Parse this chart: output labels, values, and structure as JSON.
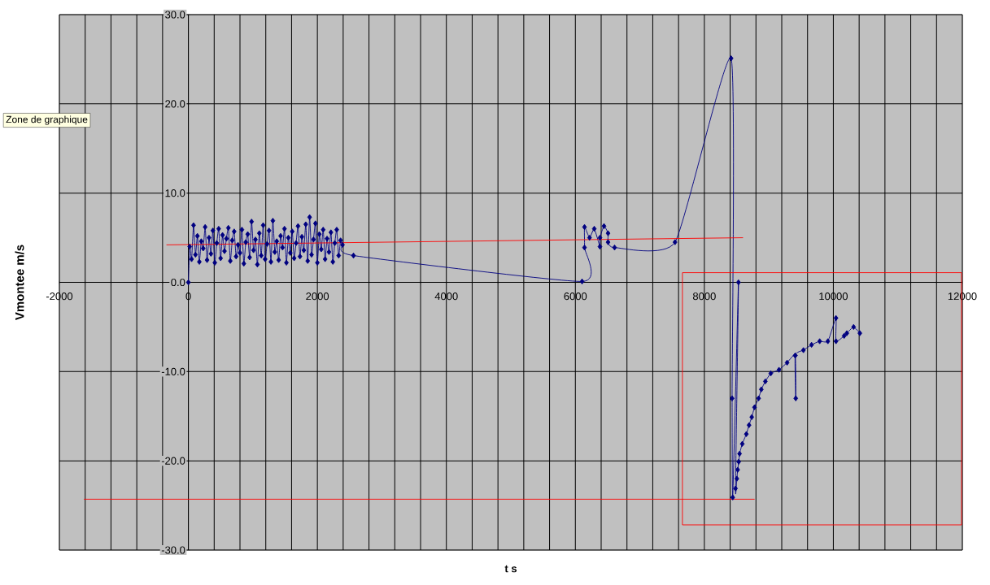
{
  "chart_data": {
    "type": "line",
    "xlabel": "t s",
    "ylabel": "Vmontee   m/s",
    "annotations": [
      "Zone de graphique"
    ],
    "xlim": [
      -2000,
      12000
    ],
    "ylim": [
      -30,
      30
    ],
    "xticks": [
      -2000,
      {
        "value": -1600,
        "label": null
      },
      {
        "value": -1200,
        "label": null
      },
      {
        "value": -800,
        "label": null
      },
      {
        "value": -400,
        "label": null
      },
      0,
      {
        "value": 400,
        "label": null
      },
      {
        "value": 800,
        "label": null
      },
      {
        "value": 1200,
        "label": null
      },
      {
        "value": 1600,
        "label": null
      },
      2000,
      {
        "value": 2400,
        "label": null
      },
      {
        "value": 2800,
        "label": null
      },
      {
        "value": 3200,
        "label": null
      },
      {
        "value": 3600,
        "label": null
      },
      4000,
      {
        "value": 4400,
        "label": null
      },
      {
        "value": 4800,
        "label": null
      },
      {
        "value": 5200,
        "label": null
      },
      {
        "value": 5600,
        "label": null
      },
      6000,
      {
        "value": 6400,
        "label": null
      },
      {
        "value": 6800,
        "label": null
      },
      {
        "value": 7200,
        "label": null
      },
      {
        "value": 7600,
        "label": null
      },
      8000,
      {
        "value": 8400,
        "label": null
      },
      {
        "value": 8800,
        "label": null
      },
      {
        "value": 9200,
        "label": null
      },
      {
        "value": 9600,
        "label": null
      },
      10000,
      {
        "value": 10400,
        "label": null
      },
      {
        "value": 10800,
        "label": null
      },
      {
        "value": 11200,
        "label": null
      },
      {
        "value": 11600,
        "label": null
      },
      12000
    ],
    "yticks": [
      {
        "value": -30,
        "label": "-30.0"
      },
      {
        "value": -20,
        "label": "-20.0"
      },
      {
        "value": -10,
        "label": "-10.0"
      },
      {
        "value": 0,
        "label": "0.0"
      },
      {
        "value": 10,
        "label": "10.0"
      },
      {
        "value": 20,
        "label": "20.0"
      },
      {
        "value": 30,
        "label": "30.0"
      }
    ],
    "grid": true,
    "marker": "diamond",
    "series": [
      {
        "color": "#000080",
        "x": [
          0,
          20,
          50,
          80,
          110,
          140,
          170,
          200,
          230,
          260,
          290,
          320,
          350,
          380,
          410,
          440,
          470,
          500,
          530,
          560,
          590,
          620,
          650,
          680,
          710,
          740,
          770,
          800,
          830,
          860,
          890,
          920,
          950,
          980,
          1010,
          1040,
          1070,
          1100,
          1130,
          1160,
          1190,
          1220,
          1250,
          1280,
          1310,
          1340,
          1370,
          1400,
          1430,
          1460,
          1490,
          1520,
          1550,
          1580,
          1610,
          1640,
          1670,
          1700,
          1730,
          1760,
          1790,
          1820,
          1850,
          1880,
          1910,
          1940,
          1970,
          2000,
          2030,
          2060,
          2090,
          2120,
          2150,
          2180,
          2210,
          2240,
          2270,
          2300,
          2330,
          2360,
          2390,
          2560,
          6104,
          6142,
          6142,
          6220,
          6293,
          6381,
          6381,
          6444,
          6507,
          6507,
          6608,
          7545,
          8415,
          8430,
          8440,
          8529,
          8483,
          8504,
          8517,
          8533,
          8546,
          8588,
          8651,
          8693,
          8735,
          8778,
          8841,
          8883,
          8946,
          9030,
          9157,
          9283,
          9409,
          9417,
          9409,
          9536,
          9662,
          9788,
          9915,
          10041,
          10041,
          10167,
          10209,
          10314,
          10411
        ],
        "values": [
          0,
          4.0,
          2.6,
          6.4,
          3.1,
          5.2,
          2.3,
          4.6,
          3.8,
          6.2,
          2.5,
          5.0,
          3.2,
          5.8,
          2.2,
          4.4,
          6.0,
          2.7,
          5.3,
          3.5,
          4.9,
          6.1,
          2.4,
          4.7,
          5.7,
          2.9,
          4.2,
          3.3,
          5.9,
          2.1,
          4.5,
          5.4,
          2.8,
          6.8,
          3.6,
          4.8,
          2.0,
          5.5,
          3.0,
          6.4,
          2.6,
          4.3,
          5.8,
          2.3,
          6.9,
          3.4,
          4.6,
          2.5,
          5.2,
          3.9,
          6.0,
          2.2,
          5.0,
          3.3,
          5.7,
          2.7,
          4.4,
          6.3,
          2.9,
          5.1,
          3.6,
          6.5,
          2.4,
          7.3,
          3.1,
          4.8,
          6.6,
          2.2,
          5.4,
          3.7,
          5.9,
          2.6,
          4.9,
          3.4,
          5.6,
          2.3,
          4.4,
          5.9,
          3.0,
          4.7,
          4.2,
          3.0,
          0.1,
          3.9,
          6.2,
          5.0,
          6.0,
          4.0,
          5.0,
          6.3,
          5.5,
          4.5,
          3.9,
          4.5,
          25.1,
          -13.0,
          -24.1,
          0,
          -23.1,
          -22.0,
          -21.0,
          -20.1,
          -19.2,
          -18.1,
          -17.0,
          -16.0,
          -15.1,
          -14.0,
          -13.0,
          -12.0,
          -11.1,
          -10.2,
          -9.8,
          -9.0,
          -8.2,
          -13.0,
          -8.2,
          -7.6,
          -7.0,
          -6.6,
          -6.6,
          -4.0,
          -6.6,
          -6.0,
          -5.7,
          -5.0,
          -5.7
        ]
      },
      {
        "color": "#ff0000",
        "marker": "none",
        "x": [
          -340,
          8600
        ],
        "values": [
          4.2,
          5.0
        ]
      },
      {
        "color": "#ff0000",
        "marker": "none",
        "x": [
          -1620,
          8780
        ],
        "values": [
          -24.3,
          -24.3
        ]
      }
    ]
  }
}
